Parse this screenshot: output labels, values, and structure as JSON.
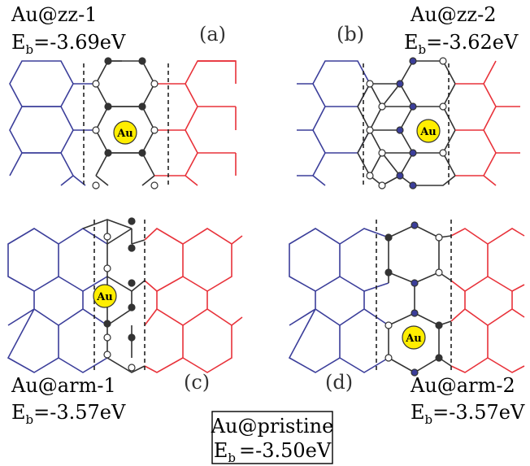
{
  "panels": [
    {
      "id": "a",
      "tag": "(a)",
      "name": "Au@zz-1",
      "energy_prefix": "E",
      "energy_sub": "b",
      "energy_value": "=-3.69eV"
    },
    {
      "id": "b",
      "tag": "(b)",
      "name": "Au@zz-2",
      "energy_prefix": "E",
      "energy_sub": "b",
      "energy_value": "=-3.62eV"
    },
    {
      "id": "c",
      "tag": "(c)",
      "name": "Au@arm-1",
      "energy_prefix": "E",
      "energy_sub": "b",
      "energy_value": "=-3.57eV"
    },
    {
      "id": "d",
      "tag": "(d)",
      "name": "Au@arm-2",
      "energy_prefix": "E",
      "energy_sub": "b",
      "energy_value": "=-3.57eV"
    }
  ],
  "pristine": {
    "name": "Au@pristine",
    "energy_prefix": "E",
    "energy_sub": "b",
    "energy_value": "=-3.50eV"
  },
  "atom_label": "Au",
  "colors": {
    "left_lattice": "#3b3e9a",
    "right_lattice": "#e8323a",
    "interface": "#333333",
    "gold": "#ffee00"
  }
}
